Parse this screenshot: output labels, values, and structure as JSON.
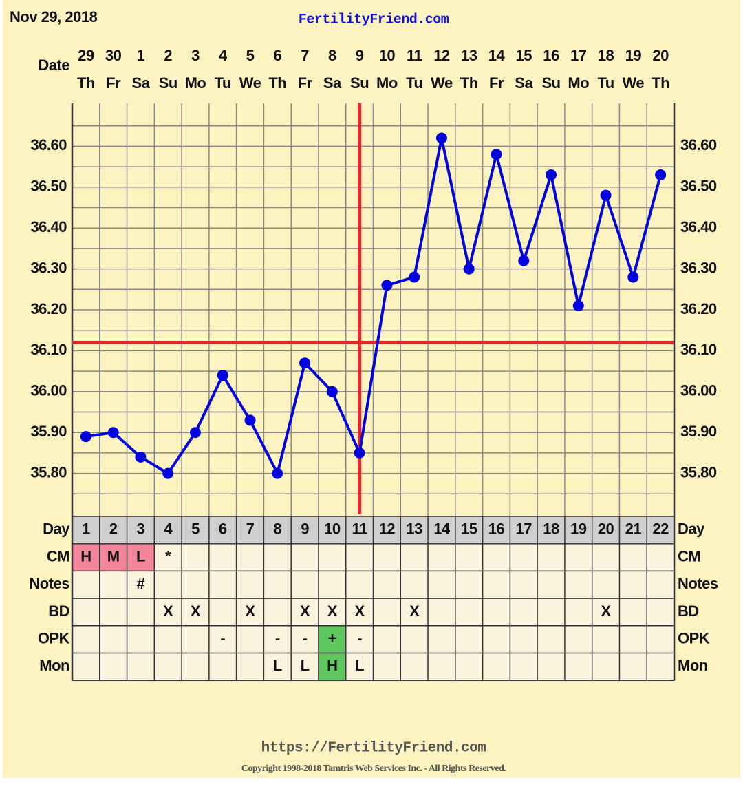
{
  "chart_data": {
    "type": "line",
    "date": "Nov 29, 2018",
    "title": "FertilityFriend.com",
    "date_label": "Date",
    "dates": [
      "29",
      "30",
      "1",
      "2",
      "3",
      "4",
      "5",
      "6",
      "7",
      "8",
      "9",
      "10",
      "11",
      "12",
      "13",
      "14",
      "15",
      "16",
      "17",
      "18",
      "19",
      "20"
    ],
    "weekdays": [
      "Th",
      "Fr",
      "Sa",
      "Su",
      "Mo",
      "Tu",
      "We",
      "Th",
      "Fr",
      "Sa",
      "Su",
      "Mo",
      "Tu",
      "We",
      "Th",
      "Fr",
      "Sa",
      "Su",
      "Mo",
      "Tu",
      "We",
      "Th"
    ],
    "day_label": "Day",
    "categories": [
      1,
      2,
      3,
      4,
      5,
      6,
      7,
      8,
      9,
      10,
      11,
      12,
      13,
      14,
      15,
      16,
      17,
      18,
      19,
      20,
      21,
      22
    ],
    "values": [
      35.89,
      35.9,
      35.84,
      35.8,
      35.9,
      36.04,
      35.93,
      35.8,
      36.07,
      36.0,
      35.85,
      36.26,
      36.28,
      36.62,
      36.3,
      36.58,
      36.32,
      36.53,
      36.21,
      36.48,
      36.28,
      36.53
    ],
    "color": "#0000e0",
    "ylim": [
      35.7,
      36.7
    ],
    "yticks": [
      {
        "value": 35.8,
        "label": "35.80"
      },
      {
        "value": 35.9,
        "label": "35.90"
      },
      {
        "value": 36.0,
        "label": "36.00"
      },
      {
        "value": 36.1,
        "label": "36.10"
      },
      {
        "value": 36.2,
        "label": "36.20"
      },
      {
        "value": 36.3,
        "label": "36.30"
      },
      {
        "value": 36.4,
        "label": "36.40"
      },
      {
        "value": 36.5,
        "label": "36.50"
      },
      {
        "value": 36.6,
        "label": "36.60"
      }
    ],
    "yminor_ticks": [
      35.75,
      35.85,
      35.95,
      36.05,
      36.15,
      36.25,
      36.35,
      36.45,
      36.55,
      36.65
    ],
    "grid": true,
    "coverline": 36.12,
    "ovulation_day": 11,
    "marker_line_color": "#e02828",
    "rows": [
      {
        "label": "CM",
        "cells": [
          "H",
          "M",
          "L",
          "*",
          null,
          null,
          null,
          null,
          null,
          null,
          null,
          null,
          null,
          null,
          null,
          null,
          null,
          null,
          null,
          null,
          null,
          null
        ],
        "colors": [
          "#f4869c",
          "#f4869c",
          "#f4869c",
          null,
          null,
          null,
          null,
          null,
          null,
          null,
          null,
          null,
          null,
          null,
          null,
          null,
          null,
          null,
          null,
          null,
          null,
          null
        ]
      },
      {
        "label": "Notes",
        "cells": [
          null,
          null,
          "#",
          null,
          null,
          null,
          null,
          null,
          null,
          null,
          null,
          null,
          null,
          null,
          null,
          null,
          null,
          null,
          null,
          null,
          null,
          null
        ],
        "colors": [
          null,
          null,
          null,
          null,
          null,
          null,
          null,
          null,
          null,
          null,
          null,
          null,
          null,
          null,
          null,
          null,
          null,
          null,
          null,
          null,
          null,
          null
        ]
      },
      {
        "label": "BD",
        "cells": [
          null,
          null,
          null,
          "X",
          "X",
          null,
          "X",
          null,
          "X",
          "X",
          "X",
          null,
          "X",
          null,
          null,
          null,
          null,
          null,
          null,
          "X",
          null,
          null
        ],
        "colors": [
          null,
          null,
          null,
          null,
          null,
          null,
          null,
          null,
          null,
          null,
          null,
          null,
          null,
          null,
          null,
          null,
          null,
          null,
          null,
          null,
          null,
          null
        ]
      },
      {
        "label": "OPK",
        "cells": [
          null,
          null,
          null,
          null,
          null,
          "-",
          null,
          "-",
          "-",
          "+",
          "-",
          null,
          null,
          null,
          null,
          null,
          null,
          null,
          null,
          null,
          null,
          null
        ],
        "colors": [
          null,
          null,
          null,
          null,
          null,
          null,
          null,
          null,
          null,
          "#5ec85e",
          null,
          null,
          null,
          null,
          null,
          null,
          null,
          null,
          null,
          null,
          null,
          null
        ]
      },
      {
        "label": "Mon",
        "cells": [
          null,
          null,
          null,
          null,
          null,
          null,
          null,
          "L",
          "L",
          "H",
          "L",
          null,
          null,
          null,
          null,
          null,
          null,
          null,
          null,
          null,
          null,
          null
        ],
        "colors": [
          null,
          null,
          null,
          null,
          null,
          null,
          null,
          null,
          null,
          "#5ec85e",
          null,
          null,
          null,
          null,
          null,
          null,
          null,
          null,
          null,
          null,
          null,
          null
        ]
      }
    ],
    "footer_url": "https://FertilityFriend.com",
    "copyright": "Copyright 1998-2018 Tamtris Web Services Inc. - All Rights Reserved."
  }
}
